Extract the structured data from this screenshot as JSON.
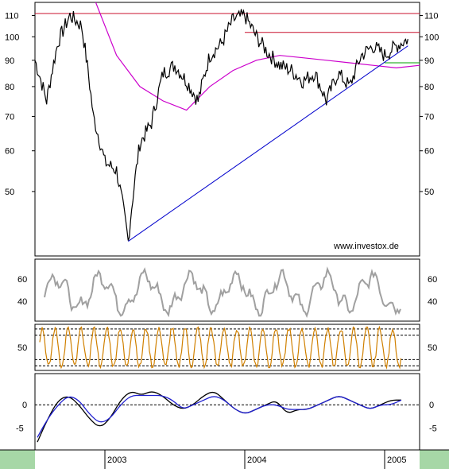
{
  "chart_data": [
    {
      "type": "line",
      "panel": "price",
      "y_scale": "log",
      "ylim": [
        38,
        115
      ],
      "yticks": [
        {
          "value": 110,
          "label": "110"
        },
        {
          "value": 100,
          "label": "100"
        },
        {
          "value": 90,
          "label": "90"
        },
        {
          "value": 80,
          "label": "80"
        },
        {
          "value": 70,
          "label": "70"
        },
        {
          "value": 60,
          "label": "60"
        },
        {
          "value": 50,
          "label": "50"
        }
      ],
      "x_range": [
        "2002-07",
        "2005-04"
      ],
      "xticks": [
        {
          "date": "2003-01",
          "label": "2003"
        },
        {
          "date": "2004-01",
          "label": "2004"
        },
        {
          "date": "2005-01",
          "label": "2005"
        }
      ],
      "watermark": "www.investox.de",
      "price_points": [
        [
          "2002-07",
          90
        ],
        [
          "2002-08",
          75
        ],
        [
          "2002-09",
          98
        ],
        [
          "2002-10",
          110
        ],
        [
          "2002-11",
          105
        ],
        [
          "2002-12",
          70
        ],
        [
          "2003-01",
          57
        ],
        [
          "2003-02",
          55
        ],
        [
          "2003-03",
          40
        ],
        [
          "2003-04",
          62
        ],
        [
          "2003-05",
          68
        ],
        [
          "2003-06",
          85
        ],
        [
          "2003-07",
          88
        ],
        [
          "2003-08",
          82
        ],
        [
          "2003-09",
          75
        ],
        [
          "2003-10",
          92
        ],
        [
          "2003-11",
          97
        ],
        [
          "2003-12",
          108
        ],
        [
          "2004-01",
          110
        ],
        [
          "2004-02",
          100
        ],
        [
          "2004-03",
          93
        ],
        [
          "2004-04",
          88
        ],
        [
          "2004-05",
          86
        ],
        [
          "2004-06",
          82
        ],
        [
          "2004-07",
          85
        ],
        [
          "2004-08",
          75
        ],
        [
          "2004-09",
          85
        ],
        [
          "2004-10",
          80
        ],
        [
          "2004-11",
          92
        ],
        [
          "2004-12",
          96
        ],
        [
          "2005-01",
          92
        ],
        [
          "2005-02",
          96
        ],
        [
          "2005-03",
          99
        ]
      ],
      "ma_points": [
        [
          "2002-10",
          180
        ],
        [
          "2002-12",
          120
        ],
        [
          "2003-02",
          92
        ],
        [
          "2003-04",
          80
        ],
        [
          "2003-06",
          75
        ],
        [
          "2003-08",
          72
        ],
        [
          "2003-10",
          80
        ],
        [
          "2003-12",
          86
        ],
        [
          "2004-02",
          90
        ],
        [
          "2004-04",
          92
        ],
        [
          "2004-06",
          91
        ],
        [
          "2004-08",
          90
        ],
        [
          "2004-10",
          89
        ],
        [
          "2004-12",
          88
        ],
        [
          "2005-02",
          87
        ],
        [
          "2005-04",
          88
        ]
      ],
      "trendline": [
        [
          "2003-03",
          40
        ],
        [
          "2005-03",
          96
        ]
      ],
      "hlines": [
        {
          "value": 111,
          "color": "#c8102e"
        },
        {
          "value": 102,
          "color": "#c8102e",
          "from": "2004-01"
        },
        {
          "value": 89,
          "color": "#00a000",
          "from": "2005-01"
        }
      ],
      "colors": {
        "price": "#000000",
        "ma": "#cc00cc",
        "trend": "#0000cc",
        "axis": "#000000"
      }
    },
    {
      "type": "line",
      "panel": "oscillator-1",
      "ylim": [
        25,
        75
      ],
      "yticks": [
        {
          "value": 60,
          "label": "60"
        },
        {
          "value": 40,
          "label": "40"
        }
      ],
      "color": "#a0a0a0"
    },
    {
      "type": "line",
      "panel": "oscillator-2",
      "ylim": [
        15,
        85
      ],
      "yticks": [
        {
          "value": 50,
          "label": "50"
        }
      ],
      "levels": [
        80,
        70,
        30,
        20
      ],
      "color": "#d08000"
    },
    {
      "type": "line",
      "panel": "macd",
      "ylim": [
        -9,
        6
      ],
      "yticks": [
        {
          "value": 0,
          "label": "0"
        },
        {
          "value": -5,
          "label": "-5"
        }
      ],
      "zero_line": true,
      "series": [
        {
          "values": [
            -8,
            -3,
            1,
            2,
            0,
            -3,
            -5,
            -3,
            1,
            3,
            2,
            3,
            2,
            0,
            -1,
            0,
            2,
            3,
            1,
            -1,
            -2,
            -1,
            0,
            1,
            -2,
            -1,
            -1,
            0,
            1,
            2,
            1,
            0,
            -1,
            0,
            1,
            1
          ],
          "color": "#000000"
        },
        {
          "values": [
            -7,
            -3,
            0,
            2,
            1,
            -2,
            -4,
            -3,
            0,
            2,
            2,
            2,
            2,
            1,
            -1,
            0,
            1,
            2,
            1,
            -1,
            -2,
            -1,
            0,
            0,
            -1,
            -1,
            -1,
            0,
            1,
            2,
            1,
            0,
            -1,
            0,
            0,
            1
          ],
          "color": "#2020d0"
        }
      ]
    }
  ]
}
